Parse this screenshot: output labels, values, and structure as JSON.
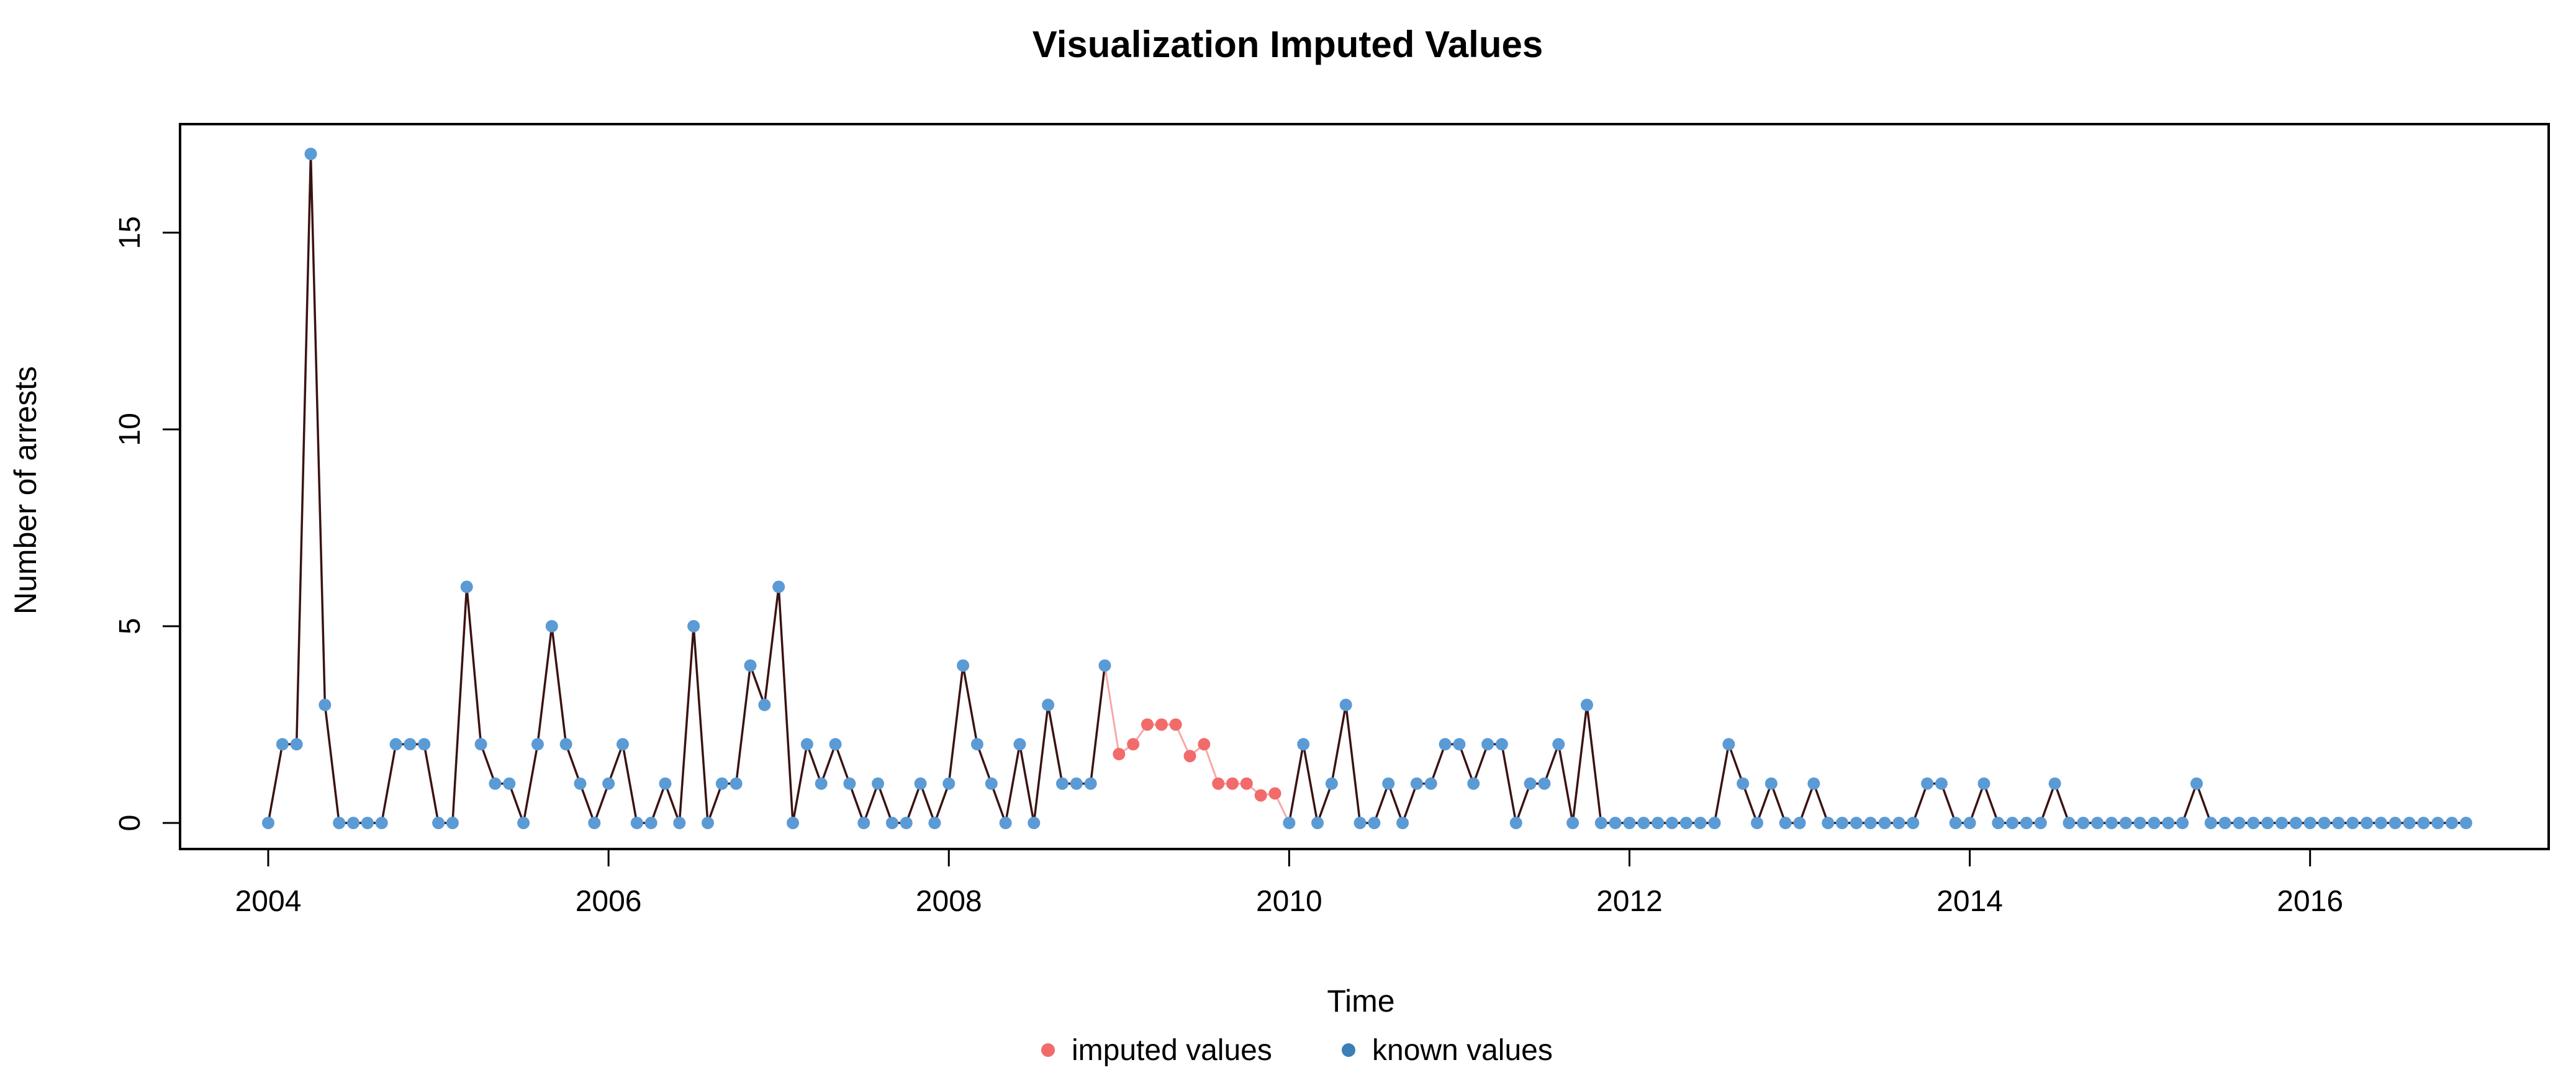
{
  "chart_data": {
    "type": "line",
    "title": "Visualization Imputed Values",
    "xlabel": "Time",
    "ylabel": "Number of arrests",
    "xlim": [
      2004,
      2016.917
    ],
    "ylim": [
      0,
      17
    ],
    "xticks": [
      2004,
      2006,
      2008,
      2010,
      2012,
      2014,
      2016
    ],
    "xtick_labels": [
      "2004",
      "2006",
      "2008",
      "2010",
      "2012",
      "2014",
      "2016"
    ],
    "yticks": [
      0,
      5,
      10,
      15
    ],
    "ytick_labels": [
      "0",
      "5",
      "10",
      "15"
    ],
    "start": 2004,
    "frequency": 12,
    "colors": {
      "known": "#5b9bd5",
      "imputed": "#f26b6b",
      "line": "#3b1212",
      "imputed_line": "#f7a8a8"
    },
    "legend": {
      "position": "bottom",
      "items": [
        {
          "label": "imputed values",
          "color": "#f26b6b"
        },
        {
          "label": "known values",
          "color": "#3b7fb8"
        }
      ]
    },
    "series": [
      {
        "name": "Number of arrests",
        "values": [
          0,
          2,
          2,
          17,
          3,
          0,
          0,
          0,
          0,
          2,
          2,
          2,
          0,
          0,
          6,
          2,
          1,
          1,
          0,
          2,
          5,
          2,
          1,
          0,
          1,
          2,
          0,
          0,
          1,
          0,
          5,
          0,
          1,
          1,
          4,
          3,
          6,
          0,
          2,
          1,
          2,
          1,
          0,
          1,
          0,
          0,
          1,
          0,
          1,
          4,
          2,
          1,
          0,
          2,
          0,
          3,
          1,
          1,
          1,
          4,
          1.75,
          2,
          2.5,
          2.5,
          2.5,
          1.7,
          2,
          1,
          1,
          1,
          0.7,
          0.75,
          0,
          2,
          0,
          1,
          3,
          0,
          0,
          1,
          0,
          1,
          1,
          2,
          2,
          1,
          2,
          2,
          0,
          1,
          1,
          2,
          0,
          3,
          0,
          0,
          0,
          0,
          0,
          0,
          0,
          0,
          0,
          2,
          1,
          0,
          1,
          0,
          0,
          1,
          0,
          0,
          0,
          0,
          0,
          0,
          0,
          1,
          1,
          0,
          0,
          1,
          0,
          0,
          0,
          0,
          1,
          0,
          0,
          0,
          0,
          0,
          0,
          0,
          0,
          0,
          1,
          0,
          0,
          0,
          0,
          0,
          0,
          0,
          0,
          0,
          0,
          0,
          0,
          0,
          0,
          0,
          0,
          0,
          0,
          0
        ],
        "imputed": [
          60,
          61,
          62,
          63,
          64,
          65,
          66,
          67,
          68,
          69,
          70,
          71
        ]
      }
    ]
  }
}
